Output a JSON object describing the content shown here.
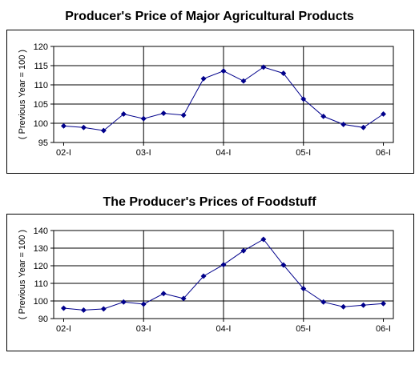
{
  "chart_data": [
    {
      "type": "line",
      "title": "Producer's Price of Major Agricultural Products",
      "ylabel": "( Previous Year = 100 )",
      "xlabel": "",
      "x_tick_labels": [
        "02-I",
        "03-I",
        "04-I",
        "05-I",
        "06-I"
      ],
      "ylim": [
        95,
        120
      ],
      "y_ticks": [
        95,
        100,
        105,
        110,
        115,
        120
      ],
      "grid": true,
      "colors": {
        "series": "#00008b"
      },
      "series": [
        {
          "values": [
            99.3,
            98.9,
            98.1,
            102.4,
            101.2,
            102.6,
            102.1,
            111.6,
            113.6,
            111.0,
            114.6,
            113.0,
            106.3,
            101.8,
            99.7,
            98.9,
            102.4
          ]
        }
      ]
    },
    {
      "type": "line",
      "title": "The Producer's Prices of Foodstuff",
      "ylabel": "( Previous Year = 100 )",
      "xlabel": "",
      "x_tick_labels": [
        "02-I",
        "03-I",
        "04-I",
        "05-I",
        "06-I"
      ],
      "ylim": [
        90,
        140
      ],
      "y_ticks": [
        90,
        100,
        110,
        120,
        130,
        140
      ],
      "grid": true,
      "colors": {
        "series": "#00008b"
      },
      "series": [
        {
          "values": [
            95.9,
            94.8,
            95.5,
            99.4,
            98.2,
            104.2,
            101.4,
            114.1,
            120.6,
            128.5,
            135.0,
            120.4,
            107.0,
            99.4,
            96.7,
            97.6,
            98.5
          ]
        }
      ]
    }
  ]
}
